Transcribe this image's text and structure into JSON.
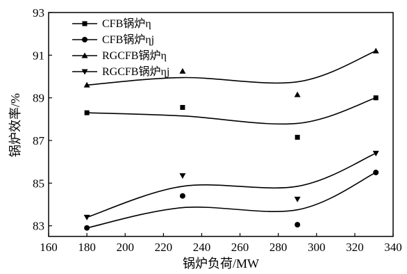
{
  "chart_data": {
    "type": "line",
    "xlabel": "锅炉负荷/MW",
    "ylabel": "锅炉效率/%",
    "xlim": [
      160,
      340
    ],
    "ylim": [
      82.5,
      93
    ],
    "xticks": [
      160,
      180,
      200,
      220,
      240,
      260,
      280,
      300,
      320,
      340
    ],
    "yticks": [
      83,
      85,
      87,
      89,
      91,
      93
    ],
    "grid": false,
    "legend_position": "top-left",
    "series": [
      {
        "name": "CFB锅炉η",
        "marker": "square",
        "x": [
          180,
          230,
          290,
          331
        ],
        "y": [
          88.3,
          88.55,
          87.15,
          89.0
        ],
        "fit": [
          88.3,
          88.15,
          87.8,
          89.0
        ]
      },
      {
        "name": "CFB锅炉ηj",
        "marker": "circle",
        "x": [
          180,
          230,
          290,
          331
        ],
        "y": [
          82.9,
          84.4,
          83.05,
          85.5
        ],
        "fit": [
          82.9,
          83.85,
          83.75,
          85.5
        ]
      },
      {
        "name": "RGCFB锅炉η",
        "marker": "triangle-up",
        "x": [
          180,
          230,
          290,
          331
        ],
        "y": [
          89.6,
          90.25,
          89.15,
          91.2
        ],
        "fit": [
          89.6,
          89.95,
          89.75,
          91.2
        ]
      },
      {
        "name": "RGCFB锅炉ηj",
        "marker": "triangle-down",
        "x": [
          180,
          230,
          290,
          331
        ],
        "y": [
          83.4,
          85.35,
          84.25,
          86.4
        ],
        "fit": [
          83.4,
          84.85,
          84.85,
          86.4
        ]
      }
    ]
  }
}
